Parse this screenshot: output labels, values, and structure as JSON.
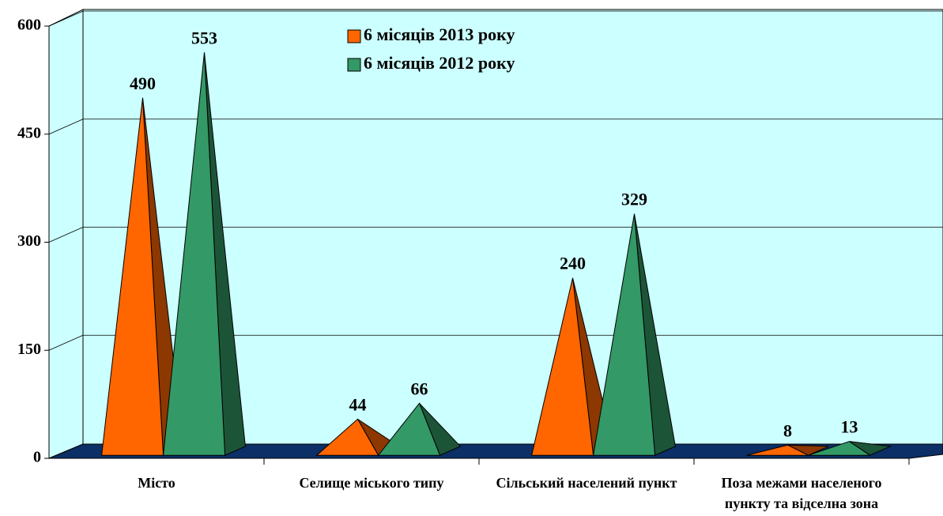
{
  "chart_data": {
    "type": "bar3d-pyramid",
    "categories": [
      "Місто",
      "Селище міського типу",
      "Сільський населений пункт",
      "Поза межами населеного пункту та відселна зона"
    ],
    "series": [
      {
        "name": "6 місяців 2013 року",
        "color": "#ff6600",
        "values": [
          490,
          44,
          240,
          8
        ]
      },
      {
        "name": "6 місяців 2012 року",
        "color": "#339966",
        "values": [
          553,
          66,
          329,
          13
        ]
      }
    ],
    "ylim": [
      0,
      600
    ],
    "yticks": [
      0,
      150,
      300,
      450,
      600
    ],
    "grid": true,
    "legend": "top"
  }
}
